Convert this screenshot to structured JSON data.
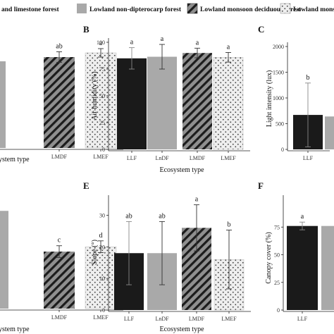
{
  "legend": {
    "items": [
      {
        "label": "and limestone forest",
        "pattern": "solid-dark"
      },
      {
        "label": "Lowland non-dipterocarp forest",
        "pattern": "solid-grey"
      },
      {
        "label": "Lowland monsoon deciduous forest",
        "pattern": "hatch"
      },
      {
        "label": "Lowland monsoon",
        "pattern": "dots"
      }
    ]
  },
  "colors": {
    "dark": "#1a1a1a",
    "grey": "#a9a9a9",
    "hatch_bg": "#8f8f8f",
    "dots_bg": "#eeeeee"
  },
  "chart_data": [
    {
      "panel": "A",
      "type": "bar",
      "xlabel": "ystem type",
      "ylabel": "",
      "categories": [
        "LMDF",
        "LMEF"
      ],
      "values": [
        86,
        90
      ],
      "errors": [
        5,
        4
      ],
      "letters": [
        "ab",
        "a"
      ],
      "ylim": [
        0,
        100
      ],
      "patterns": [
        "hatch",
        "dots"
      ],
      "partial": {
        "value": 82,
        "pattern": "solid-grey"
      }
    },
    {
      "panel": "B",
      "type": "bar",
      "xlabel": "Ecosystem type",
      "ylabel": "Air humidity (%)",
      "categories": [
        "LLF",
        "LnDF",
        "LMDF",
        "LMEF"
      ],
      "values": [
        85,
        86.5,
        90,
        86
      ],
      "errors": [
        10,
        11.5,
        4.5,
        4.5
      ],
      "letters": [
        "a",
        "a",
        "a",
        "a"
      ],
      "ylim": [
        0,
        100
      ],
      "yticks": [
        0,
        25,
        50,
        75,
        100
      ],
      "patterns": [
        "solid-dark",
        "solid-grey",
        "hatch",
        "dots"
      ]
    },
    {
      "panel": "C",
      "type": "bar",
      "xlabel": "",
      "ylabel": "Light intensity (lux)",
      "categories": [
        "LLF"
      ],
      "values": [
        670
      ],
      "errors": [
        620
      ],
      "letters": [
        "b"
      ],
      "ylim": [
        0,
        2000
      ],
      "yticks": [
        0,
        500,
        1000,
        1500,
        2000
      ],
      "patterns": [
        "solid-dark"
      ],
      "partial": {
        "value": 640,
        "pattern": "solid-grey"
      }
    },
    {
      "panel": "D",
      "type": "bar",
      "xlabel": "ystem type",
      "ylabel": "",
      "categories": [
        "LMDF",
        "LMEF"
      ],
      "values": [
        17.5,
        19
      ],
      "errors": [
        1.8,
        1.8
      ],
      "letters": [
        "c",
        "d"
      ],
      "ylim": [
        0,
        32
      ],
      "patterns": [
        "hatch",
        "dots"
      ],
      "partial": {
        "value": 30,
        "pattern": "solid-grey"
      }
    },
    {
      "panel": "E",
      "type": "bar",
      "xlabel": "Ecosystem type",
      "ylabel": "Slope (°)",
      "categories": [
        "LLF",
        "LnDF",
        "LMDF",
        "LMEF"
      ],
      "values": [
        18,
        18,
        26,
        16
      ],
      "errors": [
        10,
        10,
        7.3,
        9.3
      ],
      "letters": [
        "ab",
        "ab",
        "a",
        "b"
      ],
      "ylim": [
        0,
        35
      ],
      "yticks": [
        0,
        10,
        20,
        30
      ],
      "patterns": [
        "solid-dark",
        "solid-grey",
        "hatch",
        "dots"
      ]
    },
    {
      "panel": "F",
      "type": "bar",
      "xlabel": "",
      "ylabel": "Canopy cover (%)",
      "categories": [
        "LLF",
        "L"
      ],
      "values": [
        76,
        76
      ],
      "errors": [
        3.5,
        0
      ],
      "letters": [
        "a",
        ""
      ],
      "ylim": [
        0,
        100
      ],
      "yticks": [
        0,
        25,
        50,
        75
      ],
      "patterns": [
        "solid-dark",
        "solid-grey"
      ]
    }
  ]
}
